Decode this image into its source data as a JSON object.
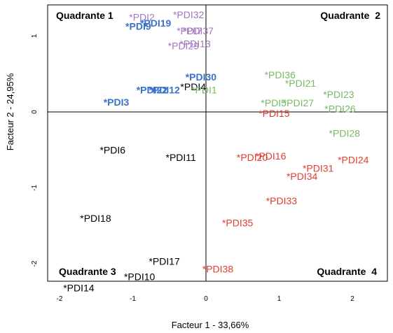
{
  "chart_data": {
    "type": "scatter",
    "xlabel": "Facteur 1 - 33,66%",
    "ylabel": "Facteur 2 - 24,95%",
    "xlim": [
      -2.2,
      2.45
    ],
    "ylim": [
      -2.75,
      1.45
    ],
    "x_ticks": [
      {
        "value": -2,
        "label": "-2"
      },
      {
        "value": -1,
        "label": "-1"
      },
      {
        "value": 0,
        "label": "0"
      },
      {
        "value": 1,
        "label": "1"
      },
      {
        "value": 2,
        "label": "2"
      }
    ],
    "y_ticks": [
      {
        "value": 1,
        "label": "1"
      },
      {
        "value": 0,
        "label": "0"
      },
      {
        "value": -1,
        "label": "-1"
      },
      {
        "value": -2,
        "label": "-2"
      }
    ],
    "quadrants": [
      {
        "label": "Quadrante 1",
        "corner": "top-left"
      },
      {
        "label": "Quadrante  2",
        "corner": "top-right"
      },
      {
        "label": "Quadrante 3",
        "corner": "bottom-left"
      },
      {
        "label": "Quadrante  4",
        "corner": "bottom-right"
      }
    ],
    "colors": {
      "blue": "#3a72c8",
      "purple": "#a377bf",
      "green": "#79b866",
      "red": "#e03c31",
      "black": "#000000"
    },
    "points": [
      {
        "label": "*PDI2",
        "x": -1.05,
        "y": 1.25,
        "color": "purple",
        "bold": false
      },
      {
        "label": "*PDI32",
        "x": -0.45,
        "y": 1.28,
        "color": "purple",
        "bold": false
      },
      {
        "label": "*PDI19",
        "x": -0.9,
        "y": 1.17,
        "color": "blue",
        "bold": true
      },
      {
        "label": "*PDI9",
        "x": -1.1,
        "y": 1.13,
        "color": "blue",
        "bold": true
      },
      {
        "label": "*PDI37",
        "x": -0.32,
        "y": 1.07,
        "color": "purple",
        "bold": false
      },
      {
        "label": "*PDI7",
        "x": -0.4,
        "y": 1.07,
        "color": "purple",
        "bold": false
      },
      {
        "label": "*PDI13",
        "x": -0.36,
        "y": 0.9,
        "color": "purple",
        "bold": false
      },
      {
        "label": "*PDI29",
        "x": -0.52,
        "y": 0.87,
        "color": "purple",
        "bold": false
      },
      {
        "label": "*PDI30",
        "x": -0.28,
        "y": 0.46,
        "color": "blue",
        "bold": true
      },
      {
        "label": "*PDI4",
        "x": -0.35,
        "y": 0.33,
        "color": "black",
        "bold": false
      },
      {
        "label": "*PDI1",
        "x": -0.2,
        "y": 0.29,
        "color": "green",
        "bold": false
      },
      {
        "label": "*PDI12",
        "x": -0.78,
        "y": 0.29,
        "color": "blue",
        "bold": true
      },
      {
        "label": "*PDI22",
        "x": -0.95,
        "y": 0.29,
        "color": "blue",
        "bold": true
      },
      {
        "label": "*PDI3",
        "x": -1.4,
        "y": 0.13,
        "color": "blue",
        "bold": true
      },
      {
        "label": "*PDI36",
        "x": 0.8,
        "y": 0.49,
        "color": "green",
        "bold": false
      },
      {
        "label": "*PDI21",
        "x": 1.08,
        "y": 0.38,
        "color": "green",
        "bold": false
      },
      {
        "label": "*PDI23",
        "x": 1.6,
        "y": 0.23,
        "color": "green",
        "bold": false
      },
      {
        "label": "*PDI5",
        "x": 0.75,
        "y": 0.12,
        "color": "green",
        "bold": false
      },
      {
        "label": "*PDI27",
        "x": 1.05,
        "y": 0.12,
        "color": "green",
        "bold": false
      },
      {
        "label": "*PDI26",
        "x": 1.62,
        "y": 0.04,
        "color": "green",
        "bold": false
      },
      {
        "label": "*PDI15",
        "x": 0.72,
        "y": -0.02,
        "color": "red",
        "bold": false
      },
      {
        "label": "*PDI28",
        "x": 1.68,
        "y": -0.28,
        "color": "green",
        "bold": false
      },
      {
        "label": "*PDI6",
        "x": -1.45,
        "y": -0.5,
        "color": "black",
        "bold": false
      },
      {
        "label": "*PDI11",
        "x": -0.55,
        "y": -0.6,
        "color": "black",
        "bold": false
      },
      {
        "label": "*PDI20",
        "x": 0.42,
        "y": -0.6,
        "color": "red",
        "bold": false
      },
      {
        "label": "*PDI16",
        "x": 0.67,
        "y": -0.58,
        "color": "red",
        "bold": false
      },
      {
        "label": "*PDI24",
        "x": 1.8,
        "y": -0.63,
        "color": "red",
        "bold": false
      },
      {
        "label": "*PDI31",
        "x": 1.32,
        "y": -0.74,
        "color": "red",
        "bold": false
      },
      {
        "label": "*PDI34",
        "x": 1.1,
        "y": -0.85,
        "color": "red",
        "bold": false
      },
      {
        "label": "*PDI33",
        "x": 0.82,
        "y": -1.17,
        "color": "red",
        "bold": false
      },
      {
        "label": "*PDI18",
        "x": -1.72,
        "y": -1.4,
        "color": "black",
        "bold": false
      },
      {
        "label": "*PDI35",
        "x": 0.22,
        "y": -1.46,
        "color": "red",
        "bold": false
      },
      {
        "label": "*PDI17",
        "x": -0.78,
        "y": -1.97,
        "color": "black",
        "bold": false
      },
      {
        "label": "*PDI38",
        "x": -0.05,
        "y": -2.07,
        "color": "red",
        "bold": false
      },
      {
        "label": "*PDI10",
        "x": -1.12,
        "y": -2.17,
        "color": "black",
        "bold": false
      },
      {
        "label": "*PDI14",
        "x": -1.95,
        "y": -2.32,
        "color": "black",
        "bold": false
      }
    ]
  }
}
